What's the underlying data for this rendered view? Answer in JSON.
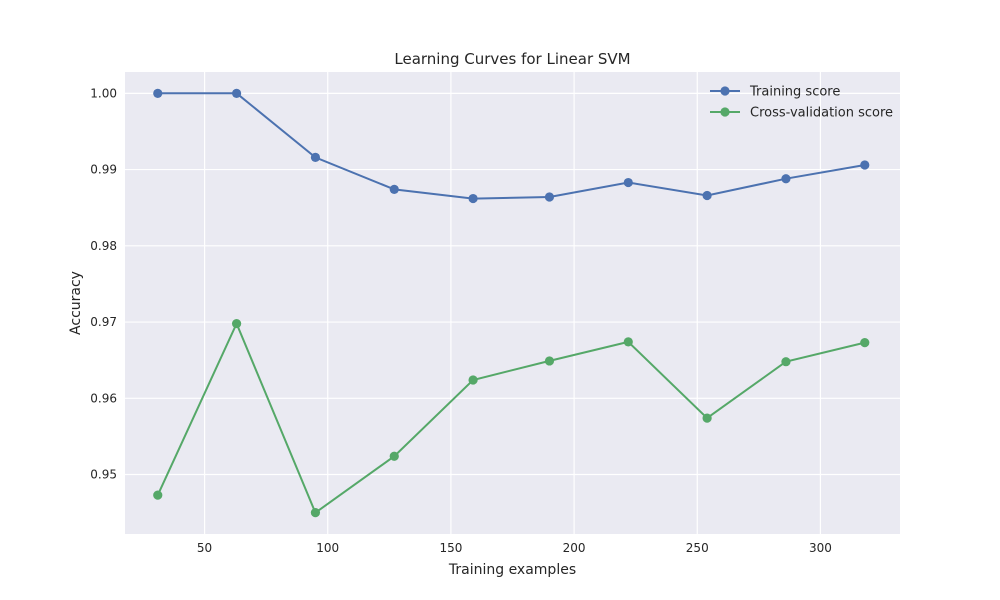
{
  "chart_data": {
    "type": "line",
    "title": "Learning Curves for Linear SVM",
    "xlabel": "Training examples",
    "ylabel": "Accuracy",
    "xlim": [
      17.7,
      332.3
    ],
    "ylim": [
      0.9422,
      1.0028
    ],
    "xticks": [
      50,
      100,
      150,
      200,
      250,
      300
    ],
    "xtick_labels": [
      "50",
      "100",
      "150",
      "200",
      "250",
      "300"
    ],
    "yticks": [
      0.95,
      0.96,
      0.97,
      0.98,
      0.99,
      1.0
    ],
    "ytick_labels": [
      "0.95",
      "0.96",
      "0.97",
      "0.98",
      "0.99",
      "1.00"
    ],
    "grid": true,
    "legend_position": "top-right",
    "x": [
      31,
      63,
      95,
      127,
      159,
      190,
      222,
      254,
      286,
      318
    ],
    "series": [
      {
        "name": "Training score",
        "color": "#4c72b0",
        "marker": "circle",
        "values": [
          1.0,
          1.0,
          0.9916,
          0.9874,
          0.9862,
          0.9864,
          0.9883,
          0.9866,
          0.9888,
          0.9906
        ]
      },
      {
        "name": "Cross-validation score",
        "color": "#55a868",
        "marker": "circle",
        "values": [
          0.9473,
          0.9698,
          0.945,
          0.9524,
          0.9624,
          0.9649,
          0.9674,
          0.9574,
          0.9648,
          0.9673
        ]
      }
    ]
  }
}
